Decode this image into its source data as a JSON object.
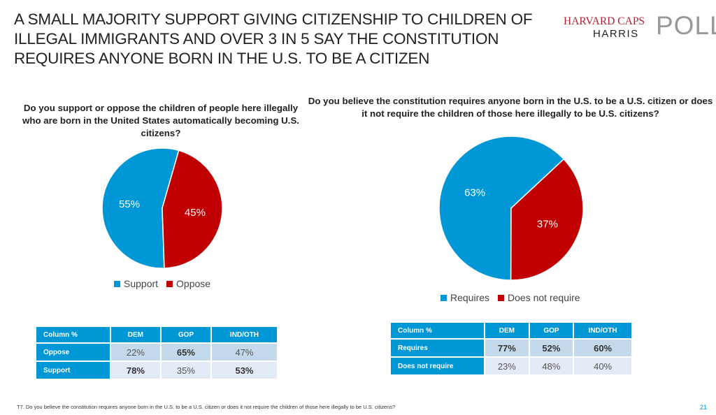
{
  "title": "A SMALL MAJORITY SUPPORT GIVING CITIZENSHIP TO CHILDREN OF ILLEGAL IMMIGRANTS AND OVER 3 IN 5 SAY THE CONSTITUTION REQUIRES ANYONE BORN IN THE U.S. TO BE A CITIZEN",
  "logo": {
    "line1": "HARVARD CAPS",
    "line2": "HARRIS",
    "line3": "POLL"
  },
  "colors": {
    "blue": "#0097d6",
    "red": "#c00000"
  },
  "chart_data": [
    {
      "type": "pie",
      "title": "Do you support or oppose the children of people here illegally who are born in the United States automatically becoming U.S. citizens?",
      "slices": [
        {
          "name": "Support",
          "value": 55,
          "label": "55%",
          "color": "#0097d6"
        },
        {
          "name": "Oppose",
          "value": 45,
          "label": "45%",
          "color": "#c00000"
        }
      ],
      "legend": "bottom"
    },
    {
      "type": "pie",
      "title": "Do you believe the constitution requires anyone born in the U.S. to be a U.S. citizen or does it not require the children of those here illegally to be U.S. citizens?",
      "slices": [
        {
          "name": "Requires",
          "value": 63,
          "label": "63%",
          "color": "#0097d6"
        },
        {
          "name": "Does not require",
          "value": 37,
          "label": "37%",
          "color": "#c00000"
        }
      ],
      "legend": "bottom"
    },
    {
      "type": "table",
      "headers": [
        "Column %",
        "DEM",
        "GOP",
        "IND/OTH"
      ],
      "rows": [
        {
          "label": "Oppose",
          "cells": [
            "22%",
            "65%",
            "47%"
          ],
          "bold": [
            false,
            true,
            false
          ]
        },
        {
          "label": "Support",
          "cells": [
            "78%",
            "35%",
            "53%"
          ],
          "bold": [
            true,
            false,
            true
          ]
        }
      ]
    },
    {
      "type": "table",
      "headers": [
        "Column %",
        "DEM",
        "GOP",
        "IND/OTH"
      ],
      "rows": [
        {
          "label": "Requires",
          "cells": [
            "77%",
            "52%",
            "60%"
          ],
          "bold": [
            true,
            true,
            true
          ]
        },
        {
          "label": "Does not require",
          "cells": [
            "23%",
            "48%",
            "40%"
          ],
          "bold": [
            false,
            false,
            false
          ]
        }
      ]
    }
  ],
  "footnote": "T7. Do you believe the constitution requires anyone born in the U.S. to be a U.S. citizen or does it not require the children of those here illegally to be U.S. citizens?",
  "page_number": "21"
}
